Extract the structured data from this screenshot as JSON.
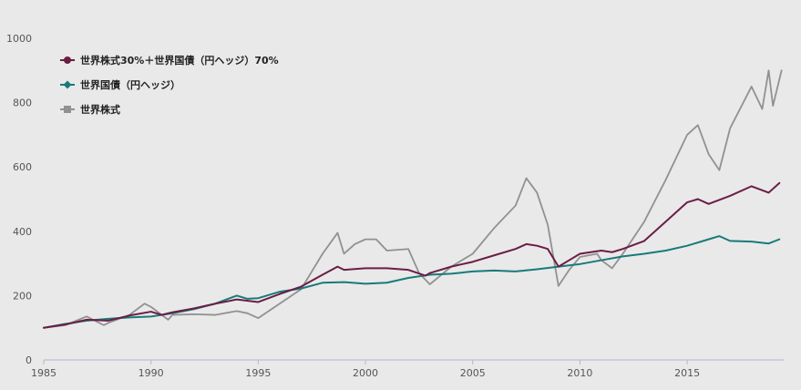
{
  "chart_data": {
    "type": "line",
    "title": "",
    "xlabel": "",
    "ylabel": "",
    "xlim": [
      1985,
      2019.5
    ],
    "ylim": [
      0,
      1000
    ],
    "x_ticks": [
      1985,
      1990,
      1995,
      2000,
      2005,
      2010,
      2015
    ],
    "y_ticks": [
      0,
      200,
      400,
      600,
      800,
      1000
    ],
    "grid": false,
    "legend_position": "top-left",
    "series": [
      {
        "name": "世界株式30%＋世界国債（円ヘッジ）70%",
        "color": "#6b1d45",
        "marker": "circle",
        "points": [
          [
            1985,
            100
          ],
          [
            1986,
            110
          ],
          [
            1987,
            125
          ],
          [
            1988,
            122
          ],
          [
            1989,
            138
          ],
          [
            1990,
            150
          ],
          [
            1990.5,
            140
          ],
          [
            1991,
            148
          ],
          [
            1992,
            160
          ],
          [
            1993,
            175
          ],
          [
            1994,
            188
          ],
          [
            1995,
            180
          ],
          [
            1996,
            205
          ],
          [
            1997,
            228
          ],
          [
            1998,
            265
          ],
          [
            1998.7,
            290
          ],
          [
            1999,
            280
          ],
          [
            2000,
            285
          ],
          [
            2001,
            285
          ],
          [
            2002,
            280
          ],
          [
            2002.8,
            262
          ],
          [
            2003,
            270
          ],
          [
            2004,
            290
          ],
          [
            2005,
            305
          ],
          [
            2006,
            325
          ],
          [
            2007,
            345
          ],
          [
            2007.5,
            360
          ],
          [
            2008,
            355
          ],
          [
            2008.5,
            345
          ],
          [
            2009,
            290
          ],
          [
            2009.5,
            310
          ],
          [
            2010,
            330
          ],
          [
            2011,
            340
          ],
          [
            2011.5,
            335
          ],
          [
            2012,
            345
          ],
          [
            2013,
            370
          ],
          [
            2014,
            430
          ],
          [
            2015,
            490
          ],
          [
            2015.5,
            500
          ],
          [
            2016,
            485
          ],
          [
            2017,
            510
          ],
          [
            2018,
            540
          ],
          [
            2018.8,
            520
          ],
          [
            2019.3,
            550
          ]
        ]
      },
      {
        "name": "世界国債（円ヘッジ）",
        "color": "#197a7a",
        "marker": "diamond",
        "points": [
          [
            1985,
            100
          ],
          [
            1986,
            112
          ],
          [
            1987,
            122
          ],
          [
            1988,
            128
          ],
          [
            1989,
            132
          ],
          [
            1990,
            135
          ],
          [
            1991,
            145
          ],
          [
            1992,
            158
          ],
          [
            1993,
            175
          ],
          [
            1994,
            200
          ],
          [
            1994.5,
            190
          ],
          [
            1995,
            192
          ],
          [
            1996,
            212
          ],
          [
            1997,
            222
          ],
          [
            1998,
            240
          ],
          [
            1999,
            242
          ],
          [
            2000,
            237
          ],
          [
            2001,
            240
          ],
          [
            2002,
            255
          ],
          [
            2003,
            265
          ],
          [
            2004,
            268
          ],
          [
            2005,
            275
          ],
          [
            2006,
            278
          ],
          [
            2007,
            275
          ],
          [
            2008,
            282
          ],
          [
            2009,
            290
          ],
          [
            2010,
            298
          ],
          [
            2011,
            310
          ],
          [
            2012,
            322
          ],
          [
            2013,
            330
          ],
          [
            2014,
            340
          ],
          [
            2015,
            355
          ],
          [
            2016,
            375
          ],
          [
            2016.5,
            385
          ],
          [
            2017,
            370
          ],
          [
            2018,
            368
          ],
          [
            2018.8,
            362
          ],
          [
            2019.3,
            375
          ]
        ]
      },
      {
        "name": "世界株式",
        "color": "#919191",
        "marker": "square",
        "points": [
          [
            1985,
            100
          ],
          [
            1986,
            108
          ],
          [
            1987,
            135
          ],
          [
            1987.8,
            108
          ],
          [
            1988,
            115
          ],
          [
            1989,
            140
          ],
          [
            1989.7,
            175
          ],
          [
            1990,
            165
          ],
          [
            1990.8,
            125
          ],
          [
            1991,
            140
          ],
          [
            1992,
            142
          ],
          [
            1993,
            140
          ],
          [
            1994,
            152
          ],
          [
            1994.5,
            145
          ],
          [
            1995,
            130
          ],
          [
            1996,
            175
          ],
          [
            1997,
            220
          ],
          [
            1998,
            330
          ],
          [
            1998.7,
            395
          ],
          [
            1999,
            330
          ],
          [
            1999.5,
            360
          ],
          [
            2000,
            375
          ],
          [
            2000.5,
            375
          ],
          [
            2001,
            340
          ],
          [
            2002,
            345
          ],
          [
            2002.5,
            270
          ],
          [
            2003,
            235
          ],
          [
            2004,
            290
          ],
          [
            2005,
            330
          ],
          [
            2006,
            410
          ],
          [
            2007,
            480
          ],
          [
            2007.5,
            565
          ],
          [
            2008,
            520
          ],
          [
            2008.5,
            420
          ],
          [
            2009,
            230
          ],
          [
            2009.5,
            280
          ],
          [
            2010,
            320
          ],
          [
            2010.8,
            330
          ],
          [
            2011,
            310
          ],
          [
            2011.5,
            285
          ],
          [
            2012,
            330
          ],
          [
            2013,
            430
          ],
          [
            2014,
            560
          ],
          [
            2015,
            700
          ],
          [
            2015.5,
            730
          ],
          [
            2016,
            640
          ],
          [
            2016.5,
            590
          ],
          [
            2017,
            720
          ],
          [
            2018,
            850
          ],
          [
            2018.5,
            780
          ],
          [
            2018.8,
            900
          ],
          [
            2019,
            790
          ],
          [
            2019.4,
            900
          ]
        ]
      }
    ]
  }
}
